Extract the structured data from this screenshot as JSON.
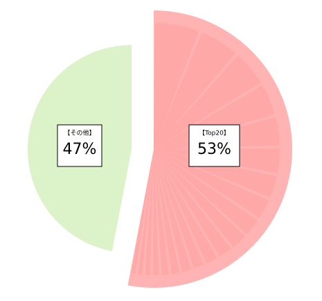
{
  "chart_data": {
    "type": "pie",
    "categories": [
      "【Top20】",
      "【その他】"
    ],
    "values": [
      53,
      47
    ],
    "value_labels": [
      "53%",
      "47%"
    ],
    "colors": [
      "#ffb3b3",
      "#dcf2c8"
    ]
  }
}
